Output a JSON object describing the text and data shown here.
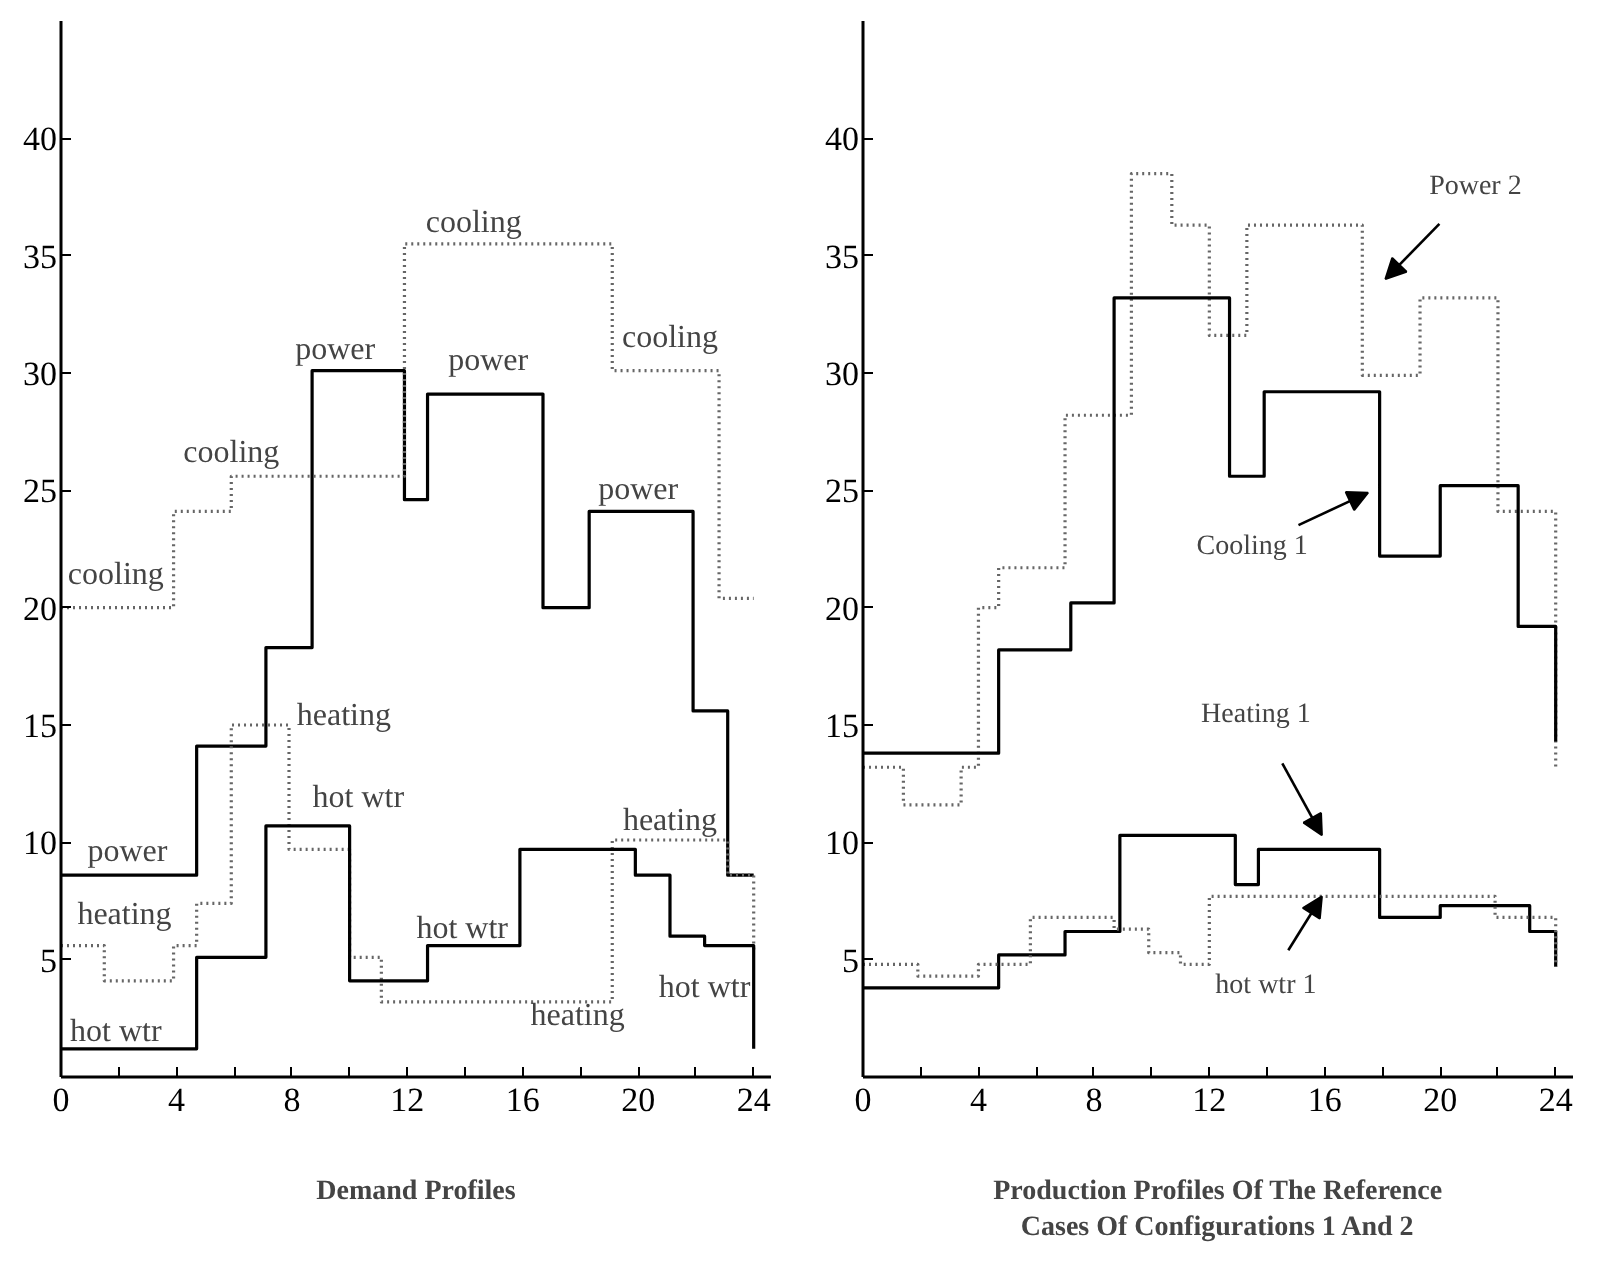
{
  "chart_data": [
    {
      "type": "step",
      "xlabel": "Demand Profiles",
      "xlim": [
        0,
        24.6
      ],
      "ylim": [
        0,
        45
      ],
      "xticks": [
        0,
        {
          "value": 2,
          "label": null
        },
        4,
        {
          "value": 6,
          "label": null
        },
        8,
        {
          "value": 10,
          "label": null
        },
        12,
        {
          "value": 14,
          "label": null
        },
        16,
        {
          "value": 18,
          "label": null
        },
        20,
        {
          "value": 22,
          "label": null
        },
        24
      ],
      "yticks": [
        5,
        10,
        15,
        20,
        25,
        30,
        35,
        40
      ],
      "grid": false,
      "series": [
        {
          "color": "#000000",
          "line_style": "solid",
          "x": [
            0,
            4.7,
            7.1,
            8.7,
            11.9,
            12.7,
            16.7,
            18.3,
            21.9,
            23.1,
            24
          ],
          "values": [
            8.6,
            14.1,
            18.3,
            30.1,
            24.6,
            29.1,
            20,
            24.1,
            15.6,
            8.6,
            8.6
          ]
        },
        {
          "color": "#666666",
          "line_style": "dotted",
          "x": [
            0,
            3.9,
            5.9,
            11.9,
            19.1,
            22.8,
            24
          ],
          "values": [
            20,
            24.1,
            25.6,
            35.5,
            30.1,
            20.4,
            20.4
          ]
        },
        {
          "color": "#666666",
          "line_style": "dotted",
          "x": [
            0,
            1.5,
            3.9,
            4.7,
            5.9,
            7.9,
            10,
            11.1,
            19.1,
            23.1,
            24
          ],
          "values": [
            5.6,
            4.1,
            5.6,
            7.4,
            15,
            9.7,
            5.1,
            3.2,
            10.1,
            8.6,
            5.3
          ]
        },
        {
          "color": "#000000",
          "line_style": "solid",
          "x": [
            0,
            4.7,
            7.1,
            10,
            12.7,
            15.9,
            19.9,
            21.1,
            22.3,
            24
          ],
          "values": [
            1.2,
            5.1,
            10.7,
            4.1,
            5.6,
            9.7,
            8.6,
            6,
            5.6,
            1.2
          ]
        }
      ],
      "annotations": [
        "cooling",
        "cooling",
        "cooling",
        "cooling",
        "power",
        "power",
        "power",
        "power",
        "heating",
        "heating",
        "heating",
        "heating",
        "hot wtr",
        "hot wtr",
        "hot wtr",
        "hot wtr"
      ]
    },
    {
      "type": "step",
      "xlabel": "Production Profiles Of The Reference\nCases Of Configurations 1 And 2",
      "xlim": [
        0,
        24.6
      ],
      "ylim": [
        0,
        45
      ],
      "xticks": [
        0,
        {
          "value": 2,
          "label": null
        },
        4,
        {
          "value": 6,
          "label": null
        },
        8,
        {
          "value": 10,
          "label": null
        },
        12,
        {
          "value": 14,
          "label": null
        },
        16,
        {
          "value": 18,
          "label": null
        },
        20,
        {
          "value": 22,
          "label": null
        },
        24
      ],
      "yticks": [
        5,
        10,
        15,
        20,
        25,
        30,
        35,
        40
      ],
      "grid": false,
      "series": [
        {
          "color": "#666666",
          "line_style": "dotted",
          "x": [
            0,
            1.4,
            3.4,
            4.0,
            4.7,
            7.0,
            9.3,
            10.7,
            12.0,
            13.3,
            17.3,
            19.3,
            22.0,
            24
          ],
          "values": [
            13.2,
            11.6,
            13.2,
            20,
            21.7,
            28.2,
            38.5,
            36.3,
            31.6,
            36.3,
            29.9,
            33.2,
            24.1,
            13.1
          ]
        },
        {
          "color": "#000000",
          "line_style": "solid",
          "x": [
            0,
            4.7,
            7.2,
            8.7,
            12.7,
            13.9,
            17.9,
            20.0,
            22.7,
            24
          ],
          "values": [
            13.8,
            18.2,
            20.2,
            33.2,
            25.6,
            29.2,
            22.2,
            25.2,
            19.2,
            14.3
          ]
        },
        {
          "color": "#000000",
          "line_style": "solid",
          "x": [
            0,
            4.7,
            7.0,
            8.9,
            12.9,
            13.7,
            17.9,
            20.0,
            23.1,
            24
          ],
          "values": [
            3.8,
            5.2,
            6.2,
            10.3,
            8.2,
            9.7,
            6.8,
            7.3,
            6.2,
            4.7
          ]
        },
        {
          "color": "#666666",
          "line_style": "dotted",
          "x": [
            0,
            1.9,
            4.0,
            5.8,
            8.7,
            9.9,
            11.0,
            12.0,
            21.9,
            24
          ],
          "values": [
            4.8,
            4.3,
            4.8,
            6.8,
            6.3,
            5.3,
            4.8,
            7.7,
            6.8,
            4.7
          ]
        }
      ],
      "annotations": [
        "Power 2",
        "Cooling 1",
        "Heating 1",
        {
          "text": "hot wtr 1",
          "x": 15.9,
          "y": 7.7
        }
      ]
    }
  ]
}
